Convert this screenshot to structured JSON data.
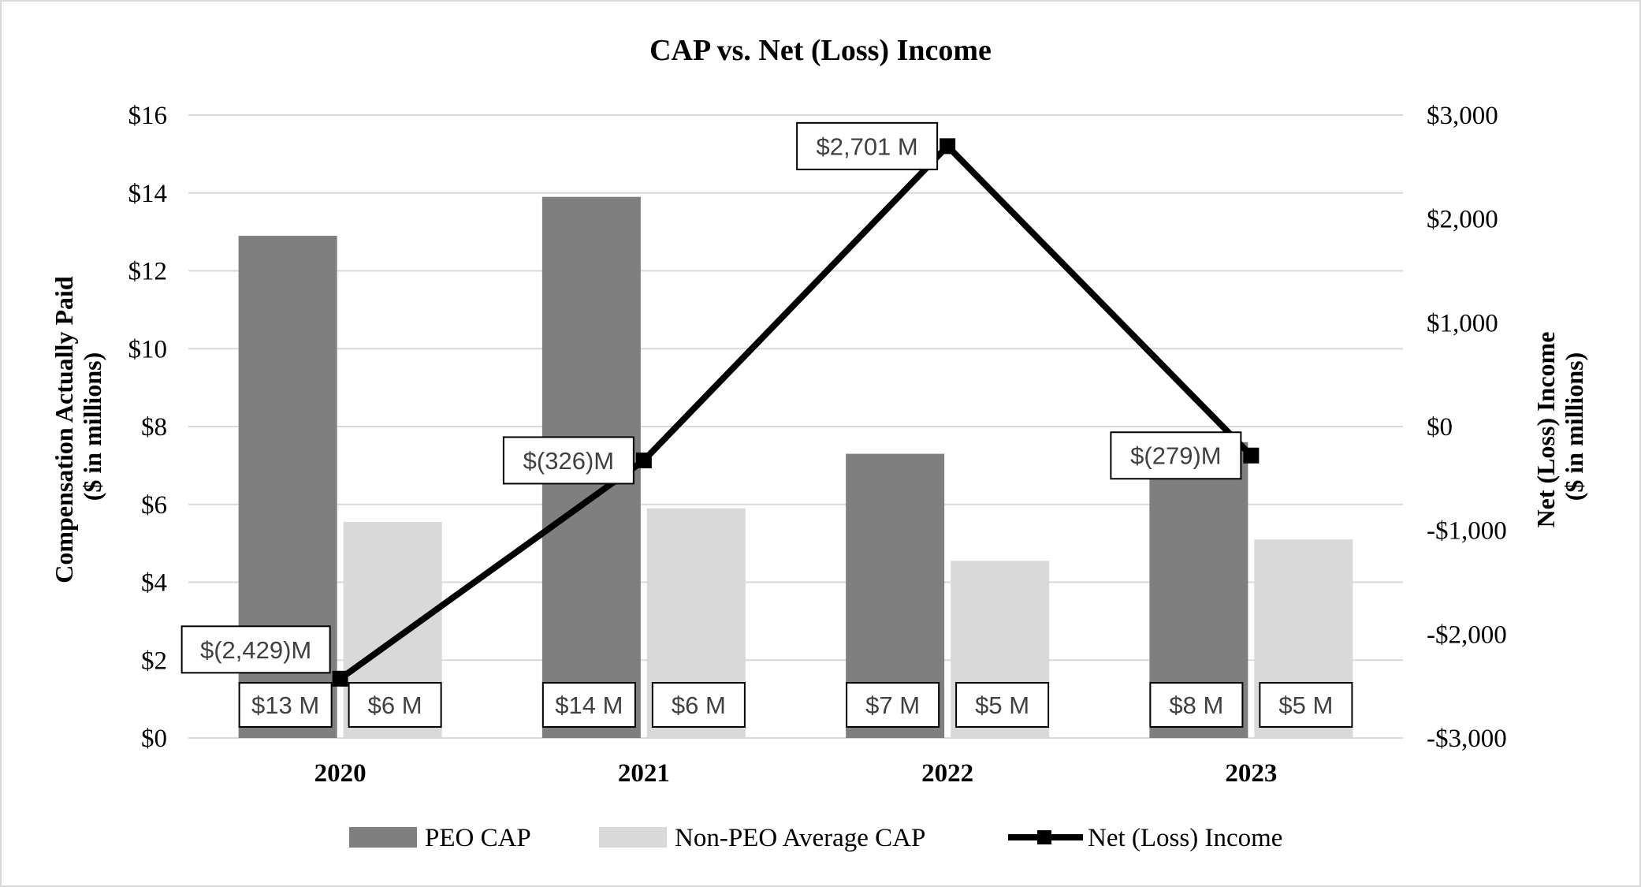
{
  "chart_data": {
    "type": "bar",
    "title": "CAP vs. Net (Loss) Income",
    "categories": [
      "2020",
      "2021",
      "2022",
      "2023"
    ],
    "ylabel": [
      "Compensation Actually Paid",
      "($ in millions)"
    ],
    "y2label": [
      "Net (Loss) Income",
      "($ in millions)"
    ],
    "ylim": [
      0,
      16
    ],
    "y2lim": [
      -3000,
      3000
    ],
    "yticks": [
      "$0",
      "$2",
      "$4",
      "$6",
      "$8",
      "$10",
      "$12",
      "$14",
      "$16"
    ],
    "y2ticks": [
      "-$3,000",
      "-$2,000",
      "-$1,000",
      "$0",
      "$1,000",
      "$2,000",
      "$3,000"
    ],
    "grid": true,
    "legend_position": "bottom",
    "series": [
      {
        "name": "PEO CAP",
        "type": "bar",
        "axis": "left",
        "color": "#7f7f7f",
        "values": [
          12.9,
          13.9,
          7.3,
          7.6
        ],
        "labels": [
          "$13 M",
          "$14 M",
          "$7 M",
          "$8 M"
        ]
      },
      {
        "name": "Non-PEO Average CAP",
        "type": "bar",
        "axis": "left",
        "color": "#d9d9d9",
        "values": [
          5.55,
          5.9,
          4.55,
          5.1
        ],
        "labels": [
          "$6 M",
          "$6 M",
          "$5 M",
          "$5 M"
        ]
      },
      {
        "name": "Net (Loss) Income",
        "type": "line",
        "axis": "right",
        "color": "#000000",
        "values": [
          -2429,
          -326,
          2701,
          -279
        ],
        "labels": [
          "$(2,429)M",
          "$(326)M",
          "$2,701 M",
          "$(279)M"
        ]
      }
    ]
  }
}
